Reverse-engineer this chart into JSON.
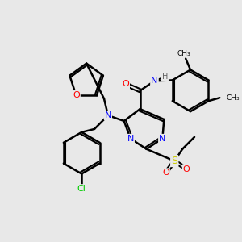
{
  "title": "",
  "bg_color": "#e8e8e8",
  "bond_color": "#000000",
  "atom_colors": {
    "N": "#0000ff",
    "O": "#ff0000",
    "S": "#cccc00",
    "Cl": "#00cc00",
    "H": "#808080",
    "C": "#000000"
  },
  "figsize": [
    3.0,
    3.0
  ],
  "dpi": 100
}
